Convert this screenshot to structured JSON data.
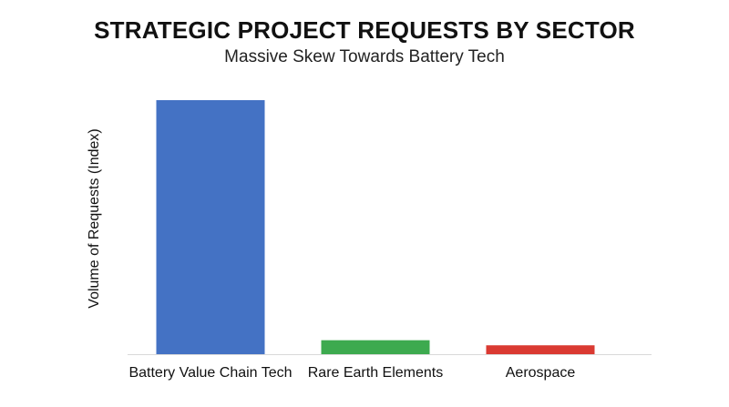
{
  "chart_data": {
    "type": "bar",
    "title": "STRATEGIC PROJECT REQUESTS BY SECTOR",
    "subtitle": "Massive Skew Towards Battery Tech",
    "xlabel": "",
    "ylabel": "Volume of Requests (Index)",
    "categories": [
      "Battery Value Chain Tech",
      "Rare Earth Elements",
      "Aerospace"
    ],
    "values": [
      100,
      5.5,
      3.5
    ],
    "ylim": [
      0,
      100
    ],
    "colors": [
      "#4472C4",
      "#3DAA4F",
      "#DA3A32"
    ],
    "grid": false,
    "legend": "none"
  }
}
